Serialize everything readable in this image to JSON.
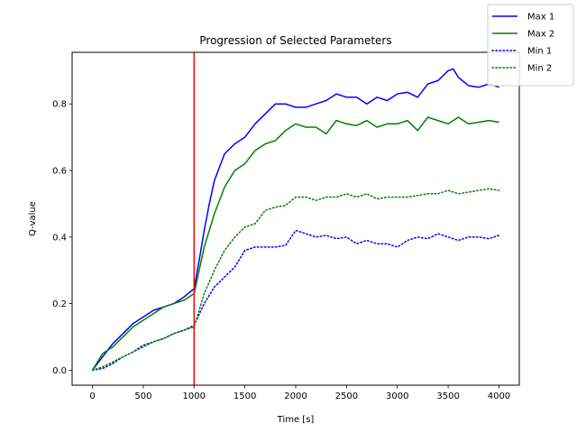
{
  "chart_data": {
    "type": "line",
    "title": "Progression of Selected Parameters",
    "xlabel": "Time [s]",
    "ylabel": "Q-value",
    "xlim": [
      -200,
      4200
    ],
    "ylim": [
      -0.045,
      0.955
    ],
    "xticks": [
      0,
      500,
      1000,
      1500,
      2000,
      2500,
      3000,
      3500,
      4000
    ],
    "yticks": [
      0.0,
      0.2,
      0.4,
      0.6,
      0.8
    ],
    "ytick_labels": [
      "0.0",
      "0.2",
      "0.4",
      "0.6",
      "0.8"
    ],
    "grid": false,
    "legend_placement": "top-right",
    "annotations": [
      {
        "type": "vertical-line",
        "x": 1000,
        "color": "#ff0000"
      }
    ],
    "series": [
      {
        "name": "Max 1",
        "color": "#0000ff",
        "style": "solid",
        "x": [
          0,
          100,
          200,
          300,
          400,
          500,
          600,
          700,
          800,
          900,
          1000,
          1050,
          1100,
          1150,
          1200,
          1300,
          1400,
          1500,
          1600,
          1700,
          1800,
          1900,
          2000,
          2100,
          2200,
          2300,
          2400,
          2500,
          2600,
          2700,
          2800,
          2900,
          3000,
          3100,
          3200,
          3300,
          3400,
          3500,
          3550,
          3600,
          3700,
          3800,
          3900,
          4000
        ],
        "y": [
          0.0,
          0.04,
          0.08,
          0.11,
          0.14,
          0.16,
          0.18,
          0.19,
          0.2,
          0.22,
          0.245,
          0.33,
          0.42,
          0.5,
          0.57,
          0.65,
          0.68,
          0.7,
          0.74,
          0.77,
          0.8,
          0.8,
          0.79,
          0.79,
          0.8,
          0.81,
          0.83,
          0.82,
          0.82,
          0.8,
          0.82,
          0.81,
          0.83,
          0.835,
          0.82,
          0.86,
          0.87,
          0.9,
          0.905,
          0.88,
          0.855,
          0.85,
          0.86,
          0.85
        ]
      },
      {
        "name": "Max 2",
        "color": "#008000",
        "style": "solid",
        "x": [
          0,
          100,
          200,
          300,
          400,
          500,
          600,
          700,
          800,
          900,
          1000,
          1050,
          1100,
          1150,
          1200,
          1300,
          1400,
          1500,
          1600,
          1700,
          1800,
          1900,
          2000,
          2100,
          2200,
          2300,
          2400,
          2500,
          2600,
          2700,
          2800,
          2900,
          3000,
          3100,
          3200,
          3300,
          3400,
          3500,
          3600,
          3700,
          3800,
          3900,
          4000
        ],
        "y": [
          0.0,
          0.05,
          0.07,
          0.1,
          0.13,
          0.15,
          0.17,
          0.19,
          0.2,
          0.21,
          0.23,
          0.3,
          0.37,
          0.42,
          0.47,
          0.55,
          0.6,
          0.62,
          0.66,
          0.68,
          0.69,
          0.72,
          0.74,
          0.73,
          0.73,
          0.71,
          0.75,
          0.74,
          0.735,
          0.75,
          0.73,
          0.74,
          0.74,
          0.75,
          0.72,
          0.76,
          0.75,
          0.74,
          0.76,
          0.74,
          0.745,
          0.75,
          0.745
        ]
      },
      {
        "name": "Min 1",
        "color": "#0000ff",
        "style": "dotted",
        "x": [
          0,
          100,
          200,
          300,
          400,
          500,
          600,
          700,
          800,
          900,
          1000,
          1100,
          1200,
          1300,
          1400,
          1500,
          1600,
          1700,
          1800,
          1900,
          2000,
          2100,
          2200,
          2300,
          2400,
          2500,
          2600,
          2700,
          2800,
          2900,
          3000,
          3100,
          3200,
          3300,
          3400,
          3500,
          3600,
          3700,
          3800,
          3900,
          4000
        ],
        "y": [
          0.0,
          0.005,
          0.02,
          0.04,
          0.055,
          0.075,
          0.085,
          0.095,
          0.11,
          0.12,
          0.135,
          0.2,
          0.25,
          0.28,
          0.31,
          0.36,
          0.37,
          0.37,
          0.37,
          0.375,
          0.42,
          0.41,
          0.4,
          0.405,
          0.395,
          0.4,
          0.38,
          0.39,
          0.38,
          0.38,
          0.37,
          0.39,
          0.4,
          0.395,
          0.41,
          0.4,
          0.39,
          0.4,
          0.4,
          0.395,
          0.405
        ]
      },
      {
        "name": "Min 2",
        "color": "#008000",
        "style": "dotted",
        "x": [
          0,
          100,
          200,
          300,
          400,
          500,
          600,
          700,
          800,
          900,
          1000,
          1100,
          1200,
          1300,
          1400,
          1500,
          1600,
          1700,
          1800,
          1900,
          2000,
          2100,
          2200,
          2300,
          2400,
          2500,
          2600,
          2700,
          2800,
          2900,
          3000,
          3100,
          3200,
          3300,
          3400,
          3500,
          3600,
          3700,
          3800,
          3900,
          4000
        ],
        "y": [
          0.0,
          0.01,
          0.025,
          0.04,
          0.055,
          0.07,
          0.085,
          0.095,
          0.11,
          0.12,
          0.13,
          0.23,
          0.3,
          0.36,
          0.4,
          0.43,
          0.44,
          0.48,
          0.49,
          0.495,
          0.52,
          0.52,
          0.51,
          0.52,
          0.52,
          0.53,
          0.52,
          0.53,
          0.515,
          0.52,
          0.52,
          0.52,
          0.525,
          0.53,
          0.53,
          0.54,
          0.53,
          0.535,
          0.54,
          0.545,
          0.54
        ]
      }
    ]
  }
}
